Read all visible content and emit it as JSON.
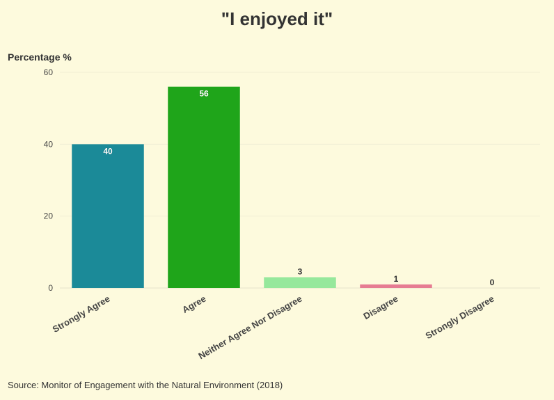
{
  "chart_data": {
    "type": "bar",
    "title": "\"I enjoyed it\"",
    "ylabel": "Percentage %",
    "xlabel": "",
    "categories": [
      "Strongly Agree",
      "Agree",
      "Neither Agree Nor Disagree",
      "Disagree",
      "Strongly Disagree"
    ],
    "values": [
      40,
      56,
      3,
      1,
      0
    ],
    "data_labels": [
      "40",
      "56",
      "3",
      "1",
      "0"
    ],
    "colors": [
      "#1b8a98",
      "#1fa51a",
      "#96e89c",
      "#e67c92",
      "#e67c92"
    ],
    "ylim": [
      0,
      60
    ],
    "yticks": [
      0,
      20,
      40,
      60
    ],
    "ytick_labels": [
      "0",
      "20",
      "40",
      "60"
    ],
    "grid": true,
    "source": "Source: Monitor of Engagement with the Natural Environment (2018)"
  },
  "style": {
    "background": "#fdfadd",
    "gridline": "#f1efd4",
    "axis_line": "#e6e4cc",
    "text": "#333333"
  }
}
